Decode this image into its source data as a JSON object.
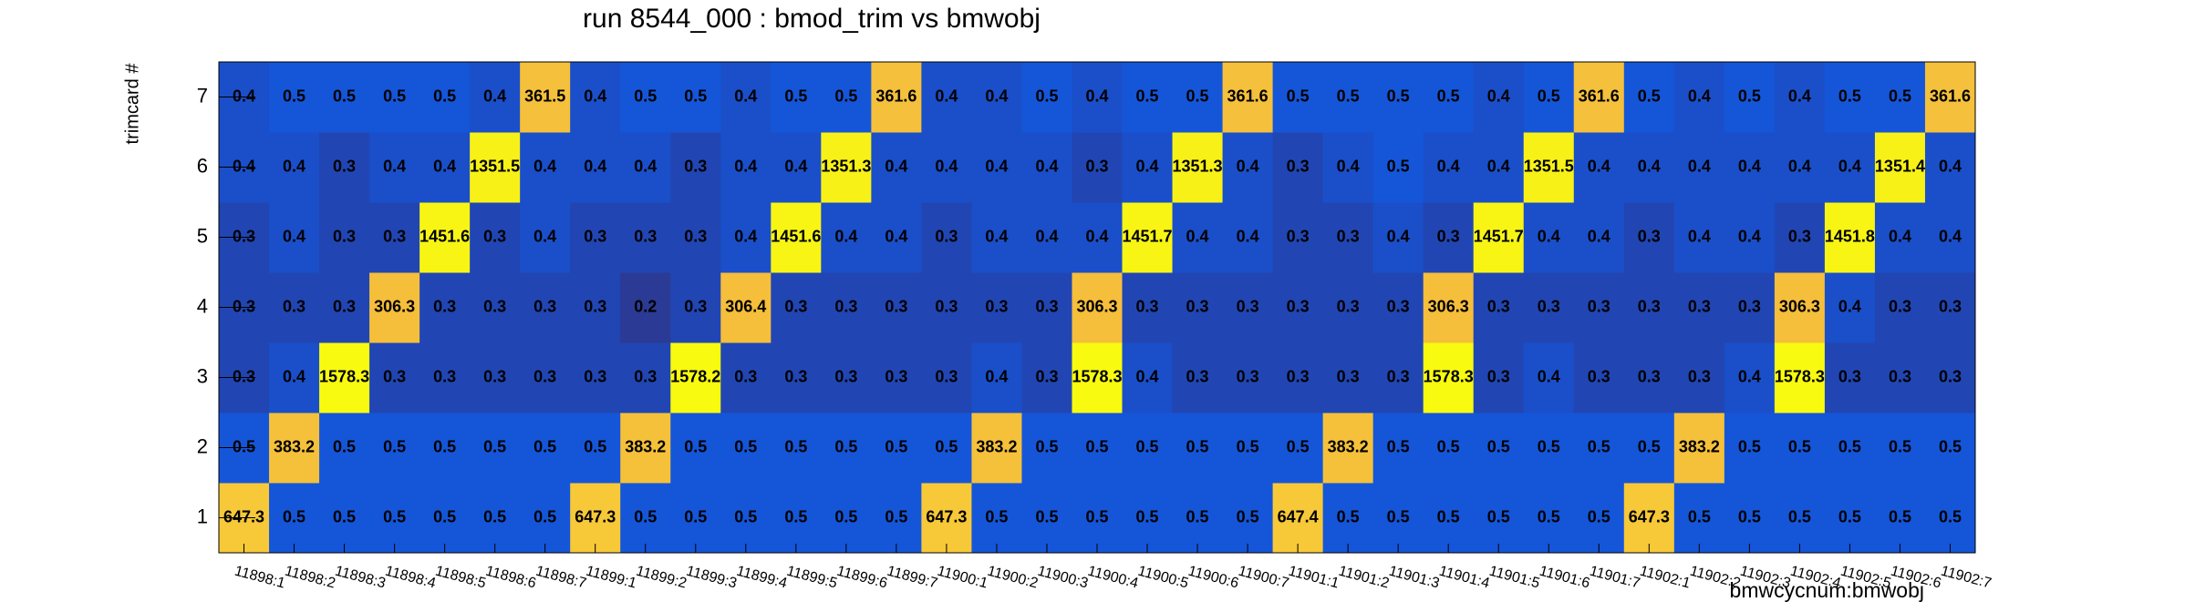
{
  "chart_data": {
    "type": "heatmap",
    "title": "run 8544_000 : bmod_trim vs bmwobj",
    "x_label": "bmwcycnum:bmwobj",
    "y_label": "trimcard #",
    "x": [
      "11898:1",
      "11898:2",
      "11898:3",
      "11898:4",
      "11898:5",
      "11898:6",
      "11898:7",
      "11899:1",
      "11899:2",
      "11899:3",
      "11899:4",
      "11899:5",
      "11899:6",
      "11899:7",
      "11900:1",
      "11900:2",
      "11900:3",
      "11900:4",
      "11900:5",
      "11900:6",
      "11900:7",
      "11901:1",
      "11901:2",
      "11901:3",
      "11901:4",
      "11901:5",
      "11901:6",
      "11901:7",
      "11902:1",
      "11902:2",
      "11902:3",
      "11902:4",
      "11902:5",
      "11902:6",
      "11902:7"
    ],
    "y": [
      1,
      2,
      3,
      4,
      5,
      6,
      7
    ],
    "z": [
      [
        647.3,
        0.5,
        0.5,
        0.5,
        0.5,
        0.5,
        0.5,
        647.3,
        0.5,
        0.5,
        0.5,
        0.5,
        0.5,
        0.5,
        647.3,
        0.5,
        0.5,
        0.5,
        0.5,
        0.5,
        0.5,
        647.4,
        0.5,
        0.5,
        0.5,
        0.5,
        0.5,
        0.5,
        647.3,
        0.5,
        0.5,
        0.5,
        0.5,
        0.5,
        0.5
      ],
      [
        0.5,
        383.2,
        0.5,
        0.5,
        0.5,
        0.5,
        0.5,
        0.5,
        383.2,
        0.5,
        0.5,
        0.5,
        0.5,
        0.5,
        0.5,
        383.2,
        0.5,
        0.5,
        0.5,
        0.5,
        0.5,
        0.5,
        383.2,
        0.5,
        0.5,
        0.5,
        0.5,
        0.5,
        0.5,
        383.2,
        0.5,
        0.5,
        0.5,
        0.5,
        0.5
      ],
      [
        0.3,
        0.4,
        1578.3,
        0.3,
        0.3,
        0.3,
        0.3,
        0.3,
        0.3,
        1578.2,
        0.3,
        0.3,
        0.3,
        0.3,
        0.3,
        0.4,
        0.3,
        1578.3,
        0.4,
        0.3,
        0.3,
        0.3,
        0.3,
        0.3,
        1578.3,
        0.3,
        0.4,
        0.3,
        0.3,
        0.3,
        0.4,
        1578.3,
        0.3,
        0.3,
        0.3
      ],
      [
        0.3,
        0.3,
        0.3,
        306.3,
        0.3,
        0.3,
        0.3,
        0.3,
        0.2,
        0.3,
        306.4,
        0.3,
        0.3,
        0.3,
        0.3,
        0.3,
        0.3,
        306.3,
        0.3,
        0.3,
        0.3,
        0.3,
        0.3,
        0.3,
        306.3,
        0.3,
        0.3,
        0.3,
        0.3,
        0.3,
        0.3,
        306.3,
        0.4,
        0.3,
        0.3
      ],
      [
        0.3,
        0.4,
        0.3,
        0.3,
        1451.6,
        0.3,
        0.4,
        0.3,
        0.3,
        0.3,
        0.4,
        1451.6,
        0.4,
        0.4,
        0.3,
        0.4,
        0.4,
        0.4,
        1451.7,
        0.4,
        0.4,
        0.3,
        0.3,
        0.4,
        0.3,
        1451.7,
        0.4,
        0.4,
        0.3,
        0.4,
        0.4,
        0.3,
        1451.8,
        0.4,
        0.4
      ],
      [
        0.4,
        0.4,
        0.3,
        0.4,
        0.4,
        1351.5,
        0.4,
        0.4,
        0.4,
        0.3,
        0.4,
        0.4,
        1351.3,
        0.4,
        0.4,
        0.4,
        0.4,
        0.3,
        0.4,
        1351.3,
        0.4,
        0.3,
        0.4,
        0.5,
        0.4,
        0.4,
        1351.5,
        0.4,
        0.4,
        0.4,
        0.4,
        0.4,
        0.4,
        1351.4,
        0.4
      ],
      [
        0.4,
        0.5,
        0.5,
        0.5,
        0.5,
        0.4,
        361.5,
        0.4,
        0.5,
        0.5,
        0.4,
        0.5,
        0.5,
        361.6,
        0.4,
        0.4,
        0.5,
        0.4,
        0.5,
        0.5,
        361.6,
        0.5,
        0.5,
        0.5,
        0.5,
        0.4,
        0.5,
        361.6,
        0.5,
        0.4,
        0.5,
        0.4,
        0.5,
        0.5,
        361.6
      ]
    ],
    "zlog": true,
    "palette": [
      "#2b3a94",
      "#1555d8",
      "#0f7fe0",
      "#14a0cc",
      "#30b8a8",
      "#70c078",
      "#b0bf50",
      "#e0b840",
      "#f4bc3c",
      "#f7c838",
      "#f8fa10"
    ]
  }
}
